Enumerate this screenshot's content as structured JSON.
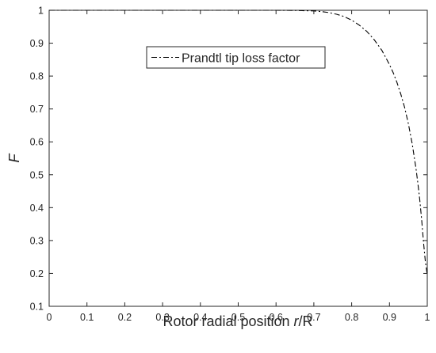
{
  "chart_data": {
    "type": "line",
    "title": "",
    "xlabel": {
      "prefix": "Rotor radial position ",
      "italic": "r",
      "suffix": "/R"
    },
    "ylabel": "F",
    "xlim": [
      0,
      1
    ],
    "ylim": [
      0.1,
      1
    ],
    "xticks": [
      "0",
      "0.1",
      "0.2",
      "0.3",
      "0.4",
      "0.5",
      "0.6",
      "0.7",
      "0.8",
      "0.9",
      "1"
    ],
    "yticks": [
      "0.1",
      "0.2",
      "0.3",
      "0.4",
      "0.5",
      "0.6",
      "0.7",
      "0.8",
      "0.9",
      "1"
    ],
    "grid": false,
    "legend_position": "top-center",
    "series": [
      {
        "name": "Prandtl tip loss factor",
        "style": "dash-dot",
        "color": "#000000",
        "x": [
          0,
          0.1,
          0.2,
          0.3,
          0.4,
          0.5,
          0.6,
          0.65,
          0.7,
          0.72,
          0.74,
          0.76,
          0.78,
          0.8,
          0.82,
          0.84,
          0.86,
          0.88,
          0.9,
          0.91,
          0.92,
          0.93,
          0.94,
          0.95,
          0.96,
          0.97,
          0.975,
          0.98,
          0.985,
          0.99,
          0.995,
          1.0
        ],
        "y": [
          1,
          1,
          1,
          1,
          1,
          1,
          1,
          0.9995,
          0.998,
          0.996,
          0.993,
          0.988,
          0.981,
          0.97,
          0.955,
          0.936,
          0.91,
          0.878,
          0.835,
          0.81,
          0.78,
          0.745,
          0.705,
          0.655,
          0.595,
          0.52,
          0.475,
          0.425,
          0.365,
          0.295,
          0.235,
          0.195
        ]
      }
    ]
  }
}
